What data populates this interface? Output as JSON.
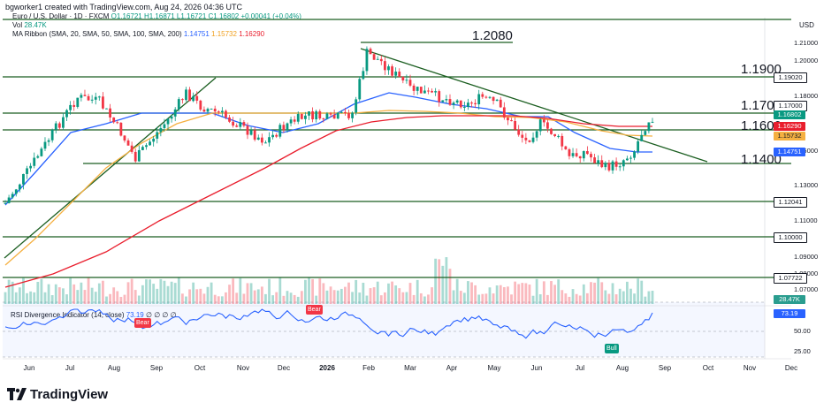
{
  "header": {
    "credit": "bgworker1 created with TradingView.com, Aug 24, 2026 04:36 UTC"
  },
  "legend": {
    "symbol": "Euro / U.S. Dollar · 1D · FXCM",
    "ohlc_o": "O1.16721",
    "ohlc_h": "H1.16871",
    "ohlc_l": "L1.16721",
    "ohlc_c": "C1.16802",
    "change": "+0.00041 (+0.04%)",
    "vol_label": "Vol",
    "vol_value": "28.47K",
    "ma_label": "MA Ribbon (SMA, 20, SMA, 50, SMA, 100, SMA, 200)",
    "ma_values": [
      "1.14751",
      "1.15732",
      "1.16290"
    ]
  },
  "rsi": {
    "label": "RSI Divergence Indicator (14, close)",
    "value": "73.19",
    "extras": "∅ ∅ ∅ ∅",
    "axis": [
      "50.00",
      "25.00"
    ],
    "current_tag": "73.19",
    "markers": [
      {
        "text": "Bear",
        "color": "#f23645"
      },
      {
        "text": "Bear",
        "color": "#f23645"
      },
      {
        "text": "Bull",
        "color": "#089981"
      }
    ]
  },
  "price_axis": {
    "currency": "USD",
    "labels": [
      "1.21000",
      "1.20000",
      "1.19000",
      "1.18000",
      "1.17000",
      "1.16000",
      "1.15000",
      "1.14000",
      "1.13000",
      "1.12000",
      "1.11000",
      "1.10000",
      "1.09000",
      "1.08000",
      "1.07000"
    ],
    "tags": [
      {
        "text": "1.19020",
        "bg": "#ffffff",
        "fg": "#131722"
      },
      {
        "text": "1.17000",
        "bg": "#ffffff",
        "fg": "#131722"
      },
      {
        "text": "1.16802",
        "bg": "#089981",
        "fg": "#ffffff"
      },
      {
        "text": "1.16290",
        "bg": "#e91e2d",
        "fg": "#ffffff"
      },
      {
        "text": "1.15732",
        "bg": "#f5b041",
        "fg": "#131722"
      },
      {
        "text": "1.14751",
        "bg": "#2962ff",
        "fg": "#ffffff"
      },
      {
        "text": "1.12041",
        "bg": "#ffffff",
        "fg": "#131722"
      },
      {
        "text": "1.10000",
        "bg": "#ffffff",
        "fg": "#131722"
      },
      {
        "text": "1.07722",
        "bg": "#ffffff",
        "fg": "#131722"
      },
      {
        "text": "28.47K",
        "bg": "#2a9d8f",
        "fg": "#ffffff"
      }
    ]
  },
  "levels": [
    {
      "text": "1.2080"
    },
    {
      "text": "1.1900"
    },
    {
      "text": "1.1700"
    },
    {
      "text": "1.1600"
    },
    {
      "text": "1.1400"
    }
  ],
  "time_axis": [
    "Jun",
    "Jul",
    "Aug",
    "Sep",
    "Oct",
    "Nov",
    "Dec",
    "2026",
    "Feb",
    "Mar",
    "Apr",
    "May",
    "Jun",
    "Jul",
    "Aug",
    "Sep",
    "Oct",
    "Nov",
    "Dec"
  ],
  "brand": {
    "name": "TradingView"
  },
  "colors": {
    "up": "#089981",
    "down": "#f23645",
    "sma20": "#2962ff",
    "sma50": "#f5b041",
    "sma100": "#e91e2d",
    "trend": "#1b5e20",
    "rsi": "#2962ff"
  }
}
